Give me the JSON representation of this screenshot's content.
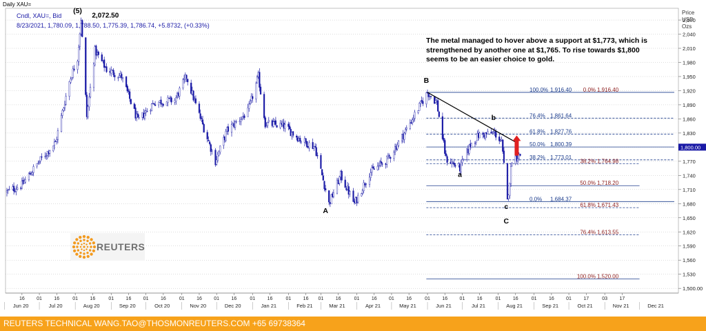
{
  "header": {
    "window_title": "Daily XAU=",
    "series_line": "Cndl, XAU=, Bid",
    "ohlc_line": "8/23/2021, 1,780.09, 1,788.50, 1,775.39, 1,786.74, +5.8732, (+0.33%)",
    "yaxis_title": [
      "Price",
      "USD",
      "Ozs"
    ]
  },
  "annotation": "The metal managed to hover above a support at $1,773, which is strengthened by another one at $1,765. To rise towards $1,800 seems to be an easier choice to gold.",
  "footer": {
    "text": "REUTERS TECHNICAL  WANG.TAO@THOSMONREUTERS.COM  +65 69738364"
  },
  "logo": {
    "text": "REUTERS"
  },
  "colors": {
    "candle": "#1a1aa6",
    "grid": "#b8b8b8",
    "fib_blue": "#1a3b8c",
    "fib_red": "#8b1a1a",
    "trendline": "#000000",
    "arrow": "#e02020",
    "footer_bg": "#f7a21b",
    "price_marker": "#1a1aa6"
  },
  "chart_data": {
    "type": "candlestick",
    "instrument": "XAU=",
    "period": "Daily",
    "price_axis_side": "right",
    "ylim": [
      1490,
      2095
    ],
    "yticks": [
      1500,
      1530,
      1560,
      1590,
      1620,
      1650,
      1680,
      1710,
      1740,
      1770,
      1800,
      1830,
      1860,
      1890,
      1920,
      1950,
      1980,
      2010,
      2040,
      2070
    ],
    "ytick_labels": [
      "1,500.00",
      "1,530",
      "1,560",
      "1,590",
      "1,620",
      "1,650",
      "1,680",
      "1,710",
      "1,740",
      "1,770",
      "1,800.00",
      "1,830",
      "1,860",
      "1,890",
      "1,920",
      "1,950",
      "1,980",
      "2,010",
      "2,040",
      "2,070"
    ],
    "last_price_label": "1,800.00",
    "x_day_labels": [
      "16",
      "01",
      "16",
      "01",
      "16",
      "01",
      "16",
      "01",
      "16",
      "01",
      "16",
      "01",
      "16",
      "01",
      "16",
      "01",
      "16",
      "01",
      "16",
      "01",
      "16",
      "01",
      "16",
      "01",
      "16",
      "01",
      "16",
      "01",
      "16",
      "01",
      "16",
      "01",
      "17",
      "03",
      "17"
    ],
    "x_month_labels": [
      "Jun 20",
      "Jul 20",
      "Aug 20",
      "Sep 20",
      "Oct 20",
      "Nov 20",
      "Dec 20",
      "Jan 21",
      "Feb 21",
      "Mar 21",
      "Apr 21",
      "May 21",
      "Jun 21",
      "Jul 21",
      "Aug 21",
      "Sep 21",
      "Oct 21",
      "Nov 21",
      "Dec 21"
    ],
    "path_points": [
      [
        "2020-06-03",
        1705
      ],
      [
        "2020-06-16",
        1720
      ],
      [
        "2020-07-01",
        1770
      ],
      [
        "2020-07-15",
        1810
      ],
      [
        "2020-07-27",
        1940
      ],
      [
        "2020-08-03",
        1990
      ],
      [
        "2020-08-06",
        2072.5
      ],
      [
        "2020-08-11",
        1865
      ],
      [
        "2020-08-18",
        2005
      ],
      [
        "2020-08-28",
        1965
      ],
      [
        "2020-09-10",
        1950
      ],
      [
        "2020-09-24",
        1855
      ],
      [
        "2020-10-08",
        1895
      ],
      [
        "2020-10-26",
        1900
      ],
      [
        "2020-11-05",
        1950
      ],
      [
        "2020-11-13",
        1890
      ],
      [
        "2020-11-30",
        1770
      ],
      [
        "2020-12-10",
        1835
      ],
      [
        "2020-12-28",
        1875
      ],
      [
        "2021-01-06",
        1950
      ],
      [
        "2021-01-12",
        1850
      ],
      [
        "2021-01-28",
        1845
      ],
      [
        "2021-02-12",
        1815
      ],
      [
        "2021-02-24",
        1800
      ],
      [
        "2021-03-08",
        1680
      ],
      [
        "2021-03-18",
        1740
      ],
      [
        "2021-03-30",
        1680
      ],
      [
        "2021-04-12",
        1745
      ],
      [
        "2021-04-28",
        1775
      ],
      [
        "2021-05-12",
        1830
      ],
      [
        "2021-06-01",
        1916.4
      ],
      [
        "2021-06-09",
        1895
      ],
      [
        "2021-06-17",
        1775
      ],
      [
        "2021-06-29",
        1755
      ],
      [
        "2021-07-08",
        1805
      ],
      [
        "2021-07-15",
        1825
      ],
      [
        "2021-07-29",
        1830
      ],
      [
        "2021-08-04",
        1810
      ],
      [
        "2021-08-09",
        1684.37
      ],
      [
        "2021-08-13",
        1775
      ],
      [
        "2021-08-23",
        1786.74
      ]
    ],
    "annotations": [
      {
        "label": "(5)",
        "date": "2020-08-03",
        "value": 2085
      },
      {
        "label": "2,072.50",
        "date": "2020-08-27",
        "value": 2075
      },
      {
        "label": "A",
        "date": "2021-03-05",
        "value": 1660
      },
      {
        "label": "B",
        "date": "2021-05-31",
        "value": 1937
      },
      {
        "label": "a",
        "date": "2021-06-29",
        "value": 1737
      },
      {
        "label": "b",
        "date": "2021-07-28",
        "value": 1858
      },
      {
        "label": "c",
        "date": "2021-08-08",
        "value": 1669
      },
      {
        "label": "C",
        "date": "2021-08-08",
        "value": 1638
      }
    ],
    "trendline": [
      [
        "2021-06-01",
        1916.4
      ],
      [
        "2021-08-18",
        1808
      ]
    ],
    "arrow": {
      "date": "2021-08-17",
      "from": 1782,
      "to": 1825
    },
    "fib_blue": [
      {
        "label": "100.0%",
        "value": 1916.4,
        "text": "1,916.40",
        "from": "2021-05-31",
        "to": "2021-12-31",
        "style": "solid"
      },
      {
        "label": "76.4%",
        "value": 1861.64,
        "text": "1,861.64",
        "from": "2021-05-31",
        "to": "2021-12-31",
        "style": "dashed"
      },
      {
        "label": "61.8%",
        "value": 1827.76,
        "text": "1,827.76",
        "from": "2021-05-31",
        "to": "2021-12-31",
        "style": "dashed"
      },
      {
        "label": "50.0%",
        "value": 1800.39,
        "text": "1,800.39",
        "from": "2021-05-31",
        "to": "2021-12-31",
        "style": "solid"
      },
      {
        "label": "38.2%",
        "value": 1773.01,
        "text": "1,773.01",
        "from": "2021-05-31",
        "to": "2021-12-31",
        "style": "dashed"
      },
      {
        "label": "0.0%",
        "value": 1684.37,
        "text": "1,684.37",
        "from": "2021-05-31",
        "to": "2021-12-31",
        "style": "solid"
      }
    ],
    "fib_red": [
      {
        "label": "0.0%",
        "value": 1916.4,
        "text": "1,916.40"
      },
      {
        "label": "38.2%",
        "value": 1764.98,
        "text": "1,764.98",
        "style": "dashed"
      },
      {
        "label": "50.0%",
        "value": 1718.2,
        "text": "1,718.20",
        "style": "solid"
      },
      {
        "label": "61.8%",
        "value": 1671.43,
        "text": "1,671.43",
        "style": "dashed"
      },
      {
        "label": "76.4%",
        "value": 1613.55,
        "text": "1,613.55",
        "style": "dashed"
      },
      {
        "label": "100.0%",
        "value": 1520.0,
        "text": "1,520.00",
        "style": "solid"
      }
    ],
    "red_fib_line_range": [
      "2021-05-31",
      "2021-12-01"
    ]
  }
}
